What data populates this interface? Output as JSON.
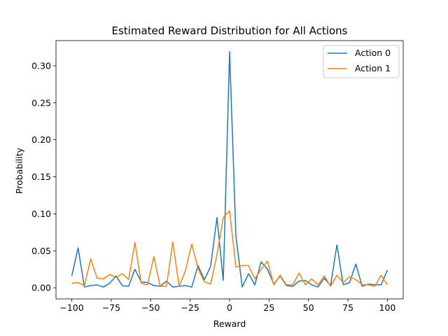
{
  "chart_data": {
    "type": "line",
    "title": "Estimated Reward Distribution for All Actions",
    "xlabel": "Reward",
    "ylabel": "Probability",
    "xlim": [
      -110,
      110
    ],
    "ylim": [
      -0.015,
      0.334
    ],
    "xticks": [
      -100,
      -75,
      -50,
      -25,
      0,
      25,
      50,
      75,
      100
    ],
    "xtick_labels": [
      "−100",
      "−75",
      "−50",
      "−25",
      "0",
      "25",
      "50",
      "75",
      "100"
    ],
    "yticks": [
      0.0,
      0.05,
      0.1,
      0.15,
      0.2,
      0.25,
      0.3
    ],
    "ytick_labels": [
      "0.00",
      "0.05",
      "0.10",
      "0.15",
      "0.20",
      "0.25",
      "0.30"
    ],
    "grid": false,
    "legend": "top-right",
    "x": [
      -100,
      -96,
      -92,
      -88,
      -84,
      -80,
      -76,
      -72,
      -68,
      -64,
      -60,
      -56,
      -52,
      -48,
      -44,
      -40,
      -36,
      -32,
      -28,
      -24,
      -20,
      -16,
      -12,
      -8,
      -4,
      0,
      4,
      8,
      12,
      16,
      20,
      24,
      28,
      32,
      36,
      40,
      44,
      48,
      52,
      56,
      60,
      64,
      68,
      72,
      76,
      80,
      84,
      88,
      92,
      96,
      100
    ],
    "series": [
      {
        "name": "Action 0",
        "color": "#1f77b4",
        "values": [
          0.016,
          0.054,
          0.001,
          0.003,
          0.004,
          0.001,
          0.006,
          0.016,
          0.003,
          0.002,
          0.025,
          0.008,
          0.007,
          0.003,
          0.002,
          0.009,
          0.001,
          0.002,
          0.003,
          0.001,
          0.03,
          0.011,
          0.029,
          0.095,
          0.01,
          0.319,
          0.07,
          0.001,
          0.019,
          0.004,
          0.035,
          0.025,
          0.005,
          0.016,
          0.003,
          0.002,
          0.009,
          0.01,
          0.004,
          0.001,
          0.013,
          0.003,
          0.058,
          0.004,
          0.007,
          0.032,
          0.002,
          0.005,
          0.004,
          0.004,
          0.024
        ]
      },
      {
        "name": "Action 1",
        "color": "#ff7f0e",
        "values": [
          0.006,
          0.007,
          0.003,
          0.039,
          0.013,
          0.012,
          0.018,
          0.014,
          0.019,
          0.011,
          0.061,
          0.006,
          0.004,
          0.042,
          0.002,
          0.002,
          0.062,
          0.002,
          0.023,
          0.059,
          0.026,
          0.008,
          0.005,
          0.045,
          0.095,
          0.104,
          0.028,
          0.03,
          0.03,
          0.012,
          0.025,
          0.036,
          0.004,
          0.017,
          0.004,
          0.004,
          0.02,
          0.004,
          0.012,
          0.004,
          0.016,
          0.002,
          0.017,
          0.007,
          0.015,
          0.011,
          0.004,
          0.004,
          0.002,
          0.017,
          0.004
        ]
      }
    ]
  }
}
